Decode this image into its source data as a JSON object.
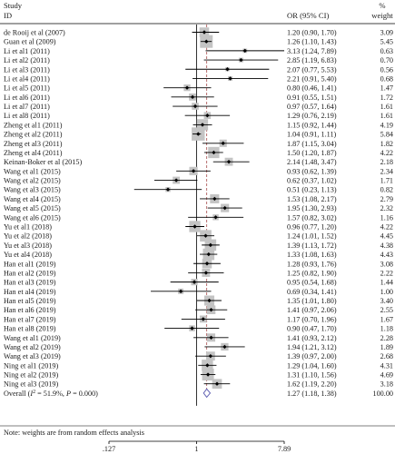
{
  "header": {
    "study_label_line1": "Study",
    "study_label_line2": "ID",
    "or_label": "OR (95% CI)",
    "weight_label_line1": "%",
    "weight_label_line2": "weight"
  },
  "footnote": "Note: weights are from random effects analysis",
  "chart_data": {
    "type": "forest",
    "x_scale": "log",
    "xlim": [
      0.127,
      7.89
    ],
    "x_ticks": [
      ".127",
      "1",
      "7.89"
    ],
    "x_tick_values": [
      0.127,
      1,
      7.89
    ],
    "null_line": 1,
    "pooled_line": 1.27,
    "colors": {
      "marker_box": "#c4c4c4",
      "ci_line": "#000000",
      "diamond": "#6464b4",
      "pooled_line": "#b06060"
    },
    "studies": [
      {
        "study": "de Rooij et al (2007)",
        "or": 1.2,
        "lo": 0.9,
        "hi": 1.7,
        "ci_text": "1.20 (0.90, 1.70)",
        "weight": 3.09,
        "weight_text": "3.09"
      },
      {
        "study": "Guan et al (2009)",
        "or": 1.26,
        "lo": 1.1,
        "hi": 1.43,
        "ci_text": "1.26 (1.10, 1.43)",
        "weight": 5.45,
        "weight_text": "5.45"
      },
      {
        "study": "Li et al1 (2011)",
        "or": 3.13,
        "lo": 1.24,
        "hi": 7.89,
        "ci_text": "3.13 (1.24, 7.89)",
        "weight": 0.63,
        "weight_text": "0.63"
      },
      {
        "study": "Li et al2 (2011)",
        "or": 2.85,
        "lo": 1.19,
        "hi": 6.83,
        "ci_text": "2.85 (1.19, 6.83)",
        "weight": 0.7,
        "weight_text": "0.70"
      },
      {
        "study": "Li et al3 (2011)",
        "or": 2.07,
        "lo": 0.77,
        "hi": 5.53,
        "ci_text": "2.07 (0.77, 5.53)",
        "weight": 0.56,
        "weight_text": "0.56"
      },
      {
        "study": "Li et al4 (2011)",
        "or": 2.21,
        "lo": 0.91,
        "hi": 5.4,
        "ci_text": "2.21 (0.91, 5.40)",
        "weight": 0.68,
        "weight_text": "0.68"
      },
      {
        "study": "Li et al5 (2011)",
        "or": 0.8,
        "lo": 0.46,
        "hi": 1.41,
        "ci_text": "0.80 (0.46, 1.41)",
        "weight": 1.47,
        "weight_text": "1.47"
      },
      {
        "study": "Li et al6 (2011)",
        "or": 0.91,
        "lo": 0.55,
        "hi": 1.51,
        "ci_text": "0.91 (0.55, 1.51)",
        "weight": 1.72,
        "weight_text": "1.72"
      },
      {
        "study": "Li et al7 (2011)",
        "or": 0.97,
        "lo": 0.57,
        "hi": 1.64,
        "ci_text": "0.97 (0.57, 1.64)",
        "weight": 1.61,
        "weight_text": "1.61"
      },
      {
        "study": "Li et al8 (2011)",
        "or": 1.29,
        "lo": 0.76,
        "hi": 2.19,
        "ci_text": "1.29 (0.76, 2.19)",
        "weight": 1.61,
        "weight_text": "1.61"
      },
      {
        "study": "Zheng et al1 (2011)",
        "or": 1.15,
        "lo": 0.92,
        "hi": 1.44,
        "ci_text": "1.15 (0.92, 1.44)",
        "weight": 4.19,
        "weight_text": "4.19"
      },
      {
        "study": "Zheng et al2 (2011)",
        "or": 1.04,
        "lo": 0.91,
        "hi": 1.11,
        "ci_text": "1.04 (0.91, 1.11)",
        "weight": 5.84,
        "weight_text": "5.84"
      },
      {
        "study": "Zheng et al3 (2011)",
        "or": 1.87,
        "lo": 1.15,
        "hi": 3.04,
        "ci_text": "1.87 (1.15, 3.04)",
        "weight": 1.82,
        "weight_text": "1.82"
      },
      {
        "study": "Zheng et al4 (2011)",
        "or": 1.5,
        "lo": 1.2,
        "hi": 1.87,
        "ci_text": "1.50 (1.20, 1.87)",
        "weight": 4.22,
        "weight_text": "4.22"
      },
      {
        "study": "Keinan-Boker et al (2015)",
        "or": 2.14,
        "lo": 1.48,
        "hi": 3.47,
        "ci_text": "2.14 (1.48, 3.47)",
        "weight": 2.18,
        "weight_text": "2.18"
      },
      {
        "study": "Wang et al1 (2015)",
        "or": 0.93,
        "lo": 0.62,
        "hi": 1.39,
        "ci_text": "0.93 (0.62, 1.39)",
        "weight": 2.34,
        "weight_text": "2.34"
      },
      {
        "study": "Wang et al2 (2015)",
        "or": 0.62,
        "lo": 0.37,
        "hi": 1.02,
        "ci_text": "0.62 (0.37, 1.02)",
        "weight": 1.71,
        "weight_text": "1.71"
      },
      {
        "study": "Wang et al3 (2015)",
        "or": 0.51,
        "lo": 0.23,
        "hi": 1.13,
        "ci_text": "0.51 (0.23, 1.13)",
        "weight": 0.82,
        "weight_text": "0.82"
      },
      {
        "study": "Wang et al4 (2015)",
        "or": 1.53,
        "lo": 1.08,
        "hi": 2.17,
        "ci_text": "1.53 (1.08, 2.17)",
        "weight": 2.79,
        "weight_text": "2.79"
      },
      {
        "study": "Wang et al5 (2015)",
        "or": 1.95,
        "lo": 1.3,
        "hi": 2.93,
        "ci_text": "1.95 (1.30, 2.93)",
        "weight": 2.32,
        "weight_text": "2.32"
      },
      {
        "study": "Wang et al6 (2015)",
        "or": 1.57,
        "lo": 0.82,
        "hi": 3.02,
        "ci_text": "1.57 (0.82, 3.02)",
        "weight": 1.16,
        "weight_text": "1.16"
      },
      {
        "study": "Yu et al1 (2018)",
        "or": 0.96,
        "lo": 0.77,
        "hi": 1.2,
        "ci_text": "0.96 (0.77, 1.20)",
        "weight": 4.22,
        "weight_text": "4.22"
      },
      {
        "study": "Yu et al2 (2018)",
        "or": 1.24,
        "lo": 1.01,
        "hi": 1.52,
        "ci_text": "1.24 (1.01, 1.52)",
        "weight": 4.45,
        "weight_text": "4.45"
      },
      {
        "study": "Yu et al3 (2018)",
        "or": 1.39,
        "lo": 1.13,
        "hi": 1.72,
        "ci_text": "1.39 (1.13, 1.72)",
        "weight": 4.38,
        "weight_text": "4.38"
      },
      {
        "study": "Yu et al4 (2018)",
        "or": 1.33,
        "lo": 1.08,
        "hi": 1.63,
        "ci_text": "1.33 (1.08, 1.63)",
        "weight": 4.43,
        "weight_text": "4.43"
      },
      {
        "study": "Han et al1 (2019)",
        "or": 1.28,
        "lo": 0.93,
        "hi": 1.76,
        "ci_text": "1.28 (0.93, 1.76)",
        "weight": 3.08,
        "weight_text": "3.08"
      },
      {
        "study": "Han et al2 (2019)",
        "or": 1.25,
        "lo": 0.82,
        "hi": 1.9,
        "ci_text": "1.25 (0.82, 1.90)",
        "weight": 2.22,
        "weight_text": "2.22"
      },
      {
        "study": "Han et al3 (2019)",
        "or": 0.95,
        "lo": 0.54,
        "hi": 1.68,
        "ci_text": "0.95 (0.54, 1.68)",
        "weight": 1.44,
        "weight_text": "1.44"
      },
      {
        "study": "Han et al4 (2019)",
        "or": 0.69,
        "lo": 0.34,
        "hi": 1.41,
        "ci_text": "0.69 (0.34, 1.41)",
        "weight": 1.0,
        "weight_text": "1.00"
      },
      {
        "study": "Han et al5 (2019)",
        "or": 1.35,
        "lo": 1.01,
        "hi": 1.8,
        "ci_text": "1.35 (1.01, 1.80)",
        "weight": 3.4,
        "weight_text": "3.40"
      },
      {
        "study": "Han et al6 (2019)",
        "or": 1.41,
        "lo": 0.97,
        "hi": 2.06,
        "ci_text": "1.41 (0.97, 2.06)",
        "weight": 2.55,
        "weight_text": "2.55"
      },
      {
        "study": "Han et al7 (2019)",
        "or": 1.17,
        "lo": 0.7,
        "hi": 1.96,
        "ci_text": "1.17 (0.70, 1.96)",
        "weight": 1.67,
        "weight_text": "1.67"
      },
      {
        "study": "Han et al8 (2019)",
        "or": 0.9,
        "lo": 0.47,
        "hi": 1.7,
        "ci_text": "0.90 (0.47, 1.70)",
        "weight": 1.18,
        "weight_text": "1.18"
      },
      {
        "study": "Wang et al1 (2019)",
        "or": 1.41,
        "lo": 0.93,
        "hi": 2.12,
        "ci_text": "1.41 (0.93, 2.12)",
        "weight": 2.28,
        "weight_text": "2.28"
      },
      {
        "study": "Wang et al2 (2019)",
        "or": 1.94,
        "lo": 1.21,
        "hi": 3.12,
        "ci_text": "1.94 (1.21, 3.12)",
        "weight": 1.89,
        "weight_text": "1.89"
      },
      {
        "study": "Wang et al3 (2019)",
        "or": 1.39,
        "lo": 0.97,
        "hi": 2.0,
        "ci_text": "1.39 (0.97, 2.00)",
        "weight": 2.68,
        "weight_text": "2.68"
      },
      {
        "study": "Ning et al1 (2019)",
        "or": 1.29,
        "lo": 1.04,
        "hi": 1.6,
        "ci_text": "1.29 (1.04, 1.60)",
        "weight": 4.31,
        "weight_text": "4.31"
      },
      {
        "study": "Ning et al2 (2019)",
        "or": 1.31,
        "lo": 1.1,
        "hi": 1.56,
        "ci_text": "1.31 (1.10, 1.56)",
        "weight": 4.69,
        "weight_text": "4.69"
      },
      {
        "study": "Ning et al3 (2019)",
        "or": 1.62,
        "lo": 1.19,
        "hi": 2.2,
        "ci_text": "1.62 (1.19, 2.20)",
        "weight": 3.18,
        "weight_text": "3.18"
      }
    ],
    "overall": {
      "label_prefix": "Overall  (",
      "i2_symbol": "I",
      "i2_sup": "2",
      "label_stats": " = 51.9%, ",
      "p_symbol": "P",
      "label_p_value": " = 0.000)",
      "or": 1.27,
      "lo": 1.18,
      "hi": 1.38,
      "ci_text": "1.27 (1.18, 1.38)",
      "weight": 100.0,
      "weight_text": "100.00"
    }
  }
}
